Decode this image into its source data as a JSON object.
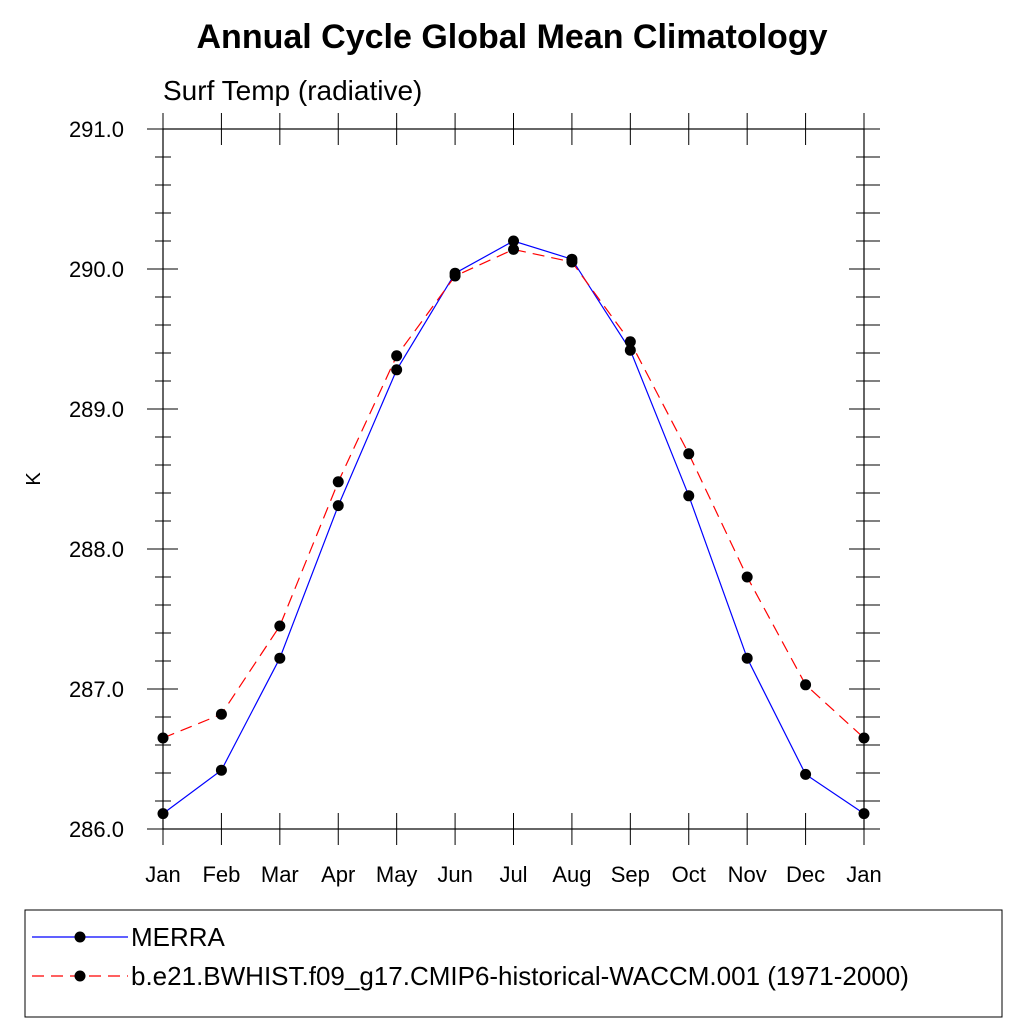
{
  "chart_data": {
    "type": "line",
    "title": "Annual Cycle Global Mean Climatology",
    "subtitle": "Surf Temp (radiative)",
    "ylabel": "K",
    "xlabel": "",
    "categories": [
      "Jan",
      "Feb",
      "Mar",
      "Apr",
      "May",
      "Jun",
      "Jul",
      "Aug",
      "Sep",
      "Oct",
      "Nov",
      "Dec",
      "Jan"
    ],
    "ylim": [
      286.0,
      291.0
    ],
    "yticks": [
      286.0,
      287.0,
      288.0,
      289.0,
      290.0,
      291.0
    ],
    "ytick_labels": [
      "286.0",
      "287.0",
      "288.0",
      "289.0",
      "290.0",
      "291.0"
    ],
    "grid": false,
    "legend_position": "bottom",
    "series": [
      {
        "name": "MERRA",
        "color": "#0000ff",
        "line_style": "solid",
        "marker": "filled-circle",
        "values": [
          286.11,
          286.42,
          287.22,
          288.31,
          289.28,
          289.97,
          290.2,
          290.07,
          289.42,
          288.38,
          287.22,
          286.39,
          286.11
        ]
      },
      {
        "name": "b.e21.BWHIST.f09_g17.CMIP6-historical-WACCM.001 (1971-2000)",
        "color": "#ff0000",
        "line_style": "dashed",
        "marker": "filled-circle",
        "values": [
          286.65,
          286.82,
          287.45,
          288.48,
          289.38,
          289.95,
          290.14,
          290.05,
          289.48,
          288.68,
          287.8,
          287.03,
          286.65
        ]
      }
    ]
  }
}
